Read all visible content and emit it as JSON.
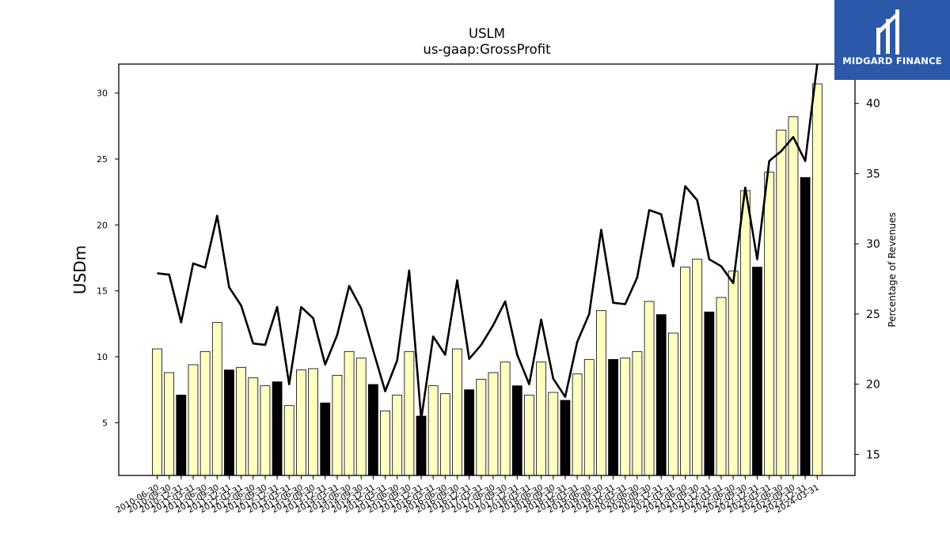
{
  "logo": {
    "text": "MIDGARD FINANCE",
    "background": "#2b58a8"
  },
  "chart_data": {
    "type": "bar+line",
    "title": "USLM",
    "subtitle": "us-gaap:GrossProfit",
    "ylabel": "USDm",
    "y2label": "Percentage of Revenues",
    "ylim": [
      1.0,
      32.2
    ],
    "y2lim": [
      13.5,
      42.8
    ],
    "yticks": [
      5,
      10,
      15,
      20,
      25,
      30
    ],
    "y2ticks": [
      15,
      20,
      25,
      30,
      35,
      40
    ],
    "colors": {
      "quarter_bar": "#ffffc0",
      "annual_bar": "#000000",
      "bar_edge": "#000000",
      "line": "#000000"
    },
    "categories": [
      "2010-06-30",
      "2010-09-30",
      "2010-12-31",
      "2011-03-31",
      "2011-06-30",
      "2011-09-30",
      "2011-12-31",
      "2012-03-31",
      "2012-06-30",
      "2012-09-30",
      "2012-12-31",
      "2013-03-31",
      "2013-06-30",
      "2013-09-30",
      "2013-12-31",
      "2014-03-31",
      "2014-06-30",
      "2014-09-30",
      "2014-12-31",
      "2015-03-31",
      "2015-06-30",
      "2015-09-30",
      "2015-12-31",
      "2016-03-31",
      "2016-06-30",
      "2016-09-30",
      "2016-12-31",
      "2017-03-31",
      "2017-06-30",
      "2017-09-30",
      "2017-12-31",
      "2018-03-31",
      "2018-06-30",
      "2018-09-30",
      "2018-12-31",
      "2019-03-31",
      "2019-06-30",
      "2019-09-30",
      "2019-12-31",
      "2020-03-31",
      "2020-06-30",
      "2020-09-30",
      "2020-12-31",
      "2021-03-31",
      "2021-06-30",
      "2021-09-30",
      "2021-12-31",
      "2022-03-31",
      "2022-06-30",
      "2022-09-30",
      "2022-12-31",
      "2023-03-31",
      "2023-06-30",
      "2023-09-30",
      "2023-12-31",
      "2024-03-31"
    ],
    "visible_xtick_labels": [
      "2010-06-30",
      "2010-09-30",
      "2010-12-31",
      "2011-03-31",
      "2011-06-30",
      "2011-09-30",
      "2011-12-31",
      "2012-03-31",
      "2012-06-30",
      "2012-09-30",
      "2012-12-31",
      "2013-03-31",
      "2013-06-30",
      "2013-09-30",
      "2013-12-31",
      "2014-03-31",
      "2014-06-30",
      "2014-09-30",
      "2014-12-31",
      "2015-03-31",
      "2015-06-30",
      "2015-09-30",
      "2015-12-31",
      "2016-03-31",
      "2016-06-30",
      "2016-09-30",
      "2016-12-31",
      "2017-03-31",
      "2017-06-30",
      "2017-09-30",
      "2017-12-31",
      "2018-03-31",
      "2018-06-30",
      "2018-09-30",
      "2018-12-31",
      "2019-03-31",
      "2019-06-30",
      "2019-09-30",
      "2019-12-31",
      "2020-03-31",
      "2020-06-30",
      "2020-09-30",
      "2020-12-31",
      "2021-03-31",
      "2021-06-30",
      "2021-09-30",
      "2021-12-31",
      "2022-03-31",
      "2022-06-30",
      "2022-09-30",
      "2022-12-31",
      "2023-03-31",
      "2023-06-30",
      "2023-09-30",
      "2023-12-31",
      "2024-03-31"
    ],
    "bar_values": [
      10.6,
      8.8,
      7.1,
      9.4,
      10.4,
      12.6,
      9.0,
      9.2,
      8.4,
      7.8,
      8.1,
      6.3,
      9.0,
      9.1,
      6.5,
      8.6,
      10.4,
      9.9,
      7.9,
      5.9,
      7.1,
      10.4,
      5.5,
      7.8,
      7.2,
      10.6,
      7.5,
      8.3,
      8.8,
      9.6,
      7.8,
      7.1,
      9.6,
      7.3,
      6.7,
      8.7,
      9.8,
      13.5,
      9.8,
      9.9,
      10.4,
      14.2,
      13.2,
      11.8,
      16.8,
      17.4,
      13.4,
      14.5,
      16.5,
      22.6,
      16.8,
      24.0,
      27.2,
      28.2,
      23.6,
      30.7
    ],
    "annual_flags": [
      0,
      0,
      1,
      0,
      0,
      0,
      1,
      0,
      0,
      0,
      1,
      0,
      0,
      0,
      1,
      0,
      0,
      0,
      1,
      0,
      0,
      0,
      1,
      0,
      0,
      0,
      1,
      0,
      0,
      0,
      1,
      0,
      0,
      0,
      1,
      0,
      0,
      0,
      1,
      0,
      0,
      0,
      1,
      0,
      0,
      0,
      1,
      0,
      0,
      0,
      1,
      0,
      0,
      0,
      1,
      0
    ],
    "line_values": [
      27.9,
      27.8,
      24.4,
      28.6,
      28.3,
      32.0,
      26.9,
      25.6,
      22.9,
      22.8,
      25.5,
      20.0,
      25.5,
      24.7,
      21.4,
      23.5,
      27.0,
      25.4,
      22.4,
      19.5,
      21.7,
      28.1,
      17.5,
      23.4,
      22.1,
      27.4,
      21.8,
      22.8,
      24.2,
      25.9,
      22.1,
      20.0,
      24.6,
      20.4,
      19.1,
      23.0,
      25.0,
      31.0,
      25.8,
      25.7,
      27.6,
      32.4,
      32.1,
      28.4,
      34.1,
      33.1,
      28.9,
      28.4,
      27.2,
      34.0,
      28.9,
      35.9,
      36.6,
      37.6,
      35.9,
      42.8
    ]
  }
}
